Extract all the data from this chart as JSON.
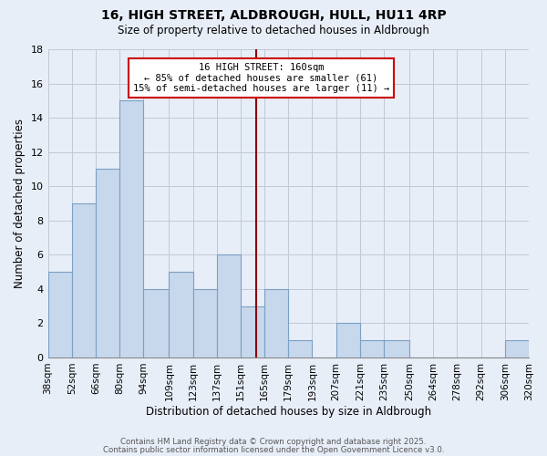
{
  "title": "16, HIGH STREET, ALDBROUGH, HULL, HU11 4RP",
  "subtitle": "Size of property relative to detached houses in Aldbrough",
  "xlabel": "Distribution of detached houses by size in Aldbrough",
  "ylabel": "Number of detached properties",
  "bar_color": "#c8d8ec",
  "bar_edgecolor": "#7aa0c4",
  "background_color": "#e8eef8",
  "grid_color": "#c0c8d8",
  "bin_edges": [
    38,
    52,
    66,
    80,
    94,
    109,
    123,
    137,
    151,
    165,
    179,
    193,
    207,
    221,
    235,
    250,
    264,
    278,
    292,
    306,
    320
  ],
  "bin_labels": [
    "38sqm",
    "52sqm",
    "66sqm",
    "80sqm",
    "94sqm",
    "109sqm",
    "123sqm",
    "137sqm",
    "151sqm",
    "165sqm",
    "179sqm",
    "193sqm",
    "207sqm",
    "221sqm",
    "235sqm",
    "250sqm",
    "264sqm",
    "278sqm",
    "292sqm",
    "306sqm",
    "320sqm"
  ],
  "counts": [
    5,
    9,
    11,
    15,
    4,
    5,
    4,
    6,
    3,
    4,
    1,
    0,
    2,
    1,
    1,
    0,
    0,
    0,
    0,
    1
  ],
  "property_size": 160,
  "marker_line_color": "#8b0000",
  "annotation_line1": "16 HIGH STREET: 160sqm",
  "annotation_line2": "← 85% of detached houses are smaller (61)",
  "annotation_line3": "15% of semi-detached houses are larger (11) →",
  "annotation_box_edgecolor": "#cc0000",
  "annotation_box_facecolor": "#ffffff",
  "ylim": [
    0,
    18
  ],
  "yticks": [
    0,
    2,
    4,
    6,
    8,
    10,
    12,
    14,
    16,
    18
  ],
  "footer1": "Contains HM Land Registry data © Crown copyright and database right 2025.",
  "footer2": "Contains public sector information licensed under the Open Government Licence v3.0."
}
